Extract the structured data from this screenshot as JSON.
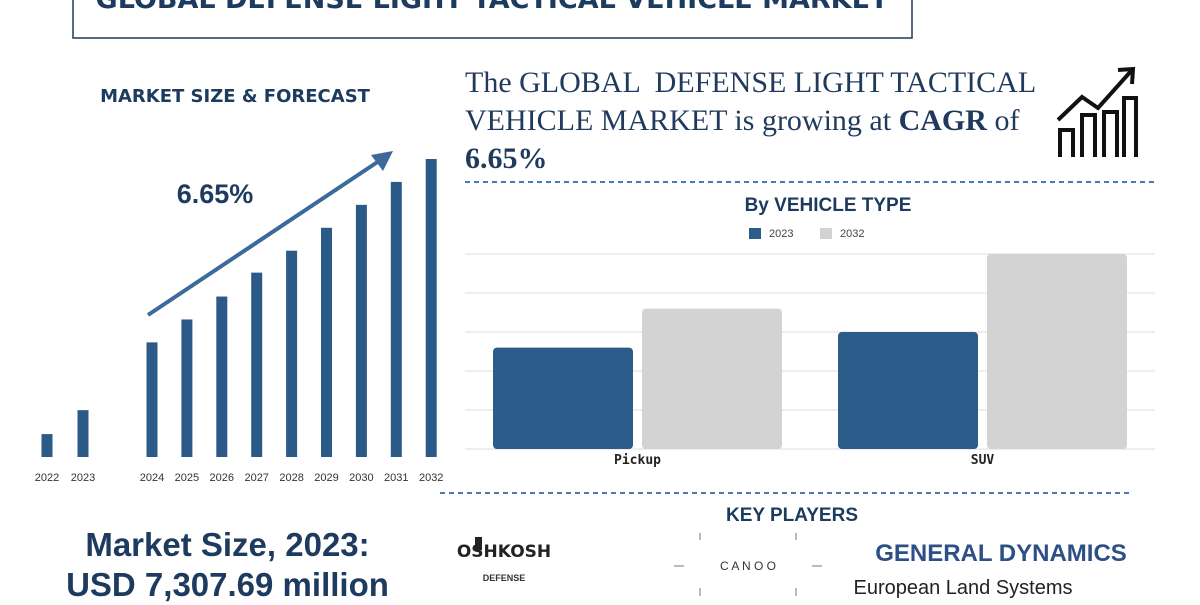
{
  "header": {
    "title": "GLOBAL DEFENSE LIGHT TACTICAL VEHICLE MARKET"
  },
  "chart_data": [
    {
      "type": "bar",
      "title": "MARKET SIZE & FORECAST",
      "annotation": "6.65%",
      "categories": [
        "2022",
        "2023",
        "2024",
        "2025",
        "2026",
        "2027",
        "2028",
        "2029",
        "2030",
        "2031",
        "2032"
      ],
      "values": [
        23,
        47,
        115,
        138,
        161,
        185,
        207,
        230,
        253,
        276,
        299
      ],
      "color": "#2c5a88",
      "ylim": [
        0,
        300
      ]
    },
    {
      "type": "grouped-bar",
      "title": "By VEHICLE TYPE",
      "categories": [
        "Pickup",
        "SUV"
      ],
      "series": [
        {
          "name": "2023",
          "color": "#2b5c8a",
          "values": [
            2.6,
            3.0
          ]
        },
        {
          "name": "2032",
          "color": "#d3d3d3",
          "values": [
            3.6,
            5.0
          ]
        }
      ],
      "ylim": [
        0,
        5
      ],
      "gridlines": [
        0,
        1,
        2,
        3,
        4,
        5
      ]
    }
  ],
  "headline": {
    "parts": [
      "The GLOBAL  DEFENSE LIGHT TACTICAL",
      "VEHICLE MARKET is growing at ",
      "CAGR",
      " of",
      "6.65%"
    ]
  },
  "key_players": {
    "title": "KEY PLAYERS",
    "logos": [
      "OSHKOSH",
      "DEFENSE",
      "C A N O O",
      "GENERAL DYNAMICS",
      "European Land Systems"
    ]
  },
  "market_size": {
    "line1": "Market Size, 2023:",
    "line2": "USD 7,307.69 million"
  }
}
